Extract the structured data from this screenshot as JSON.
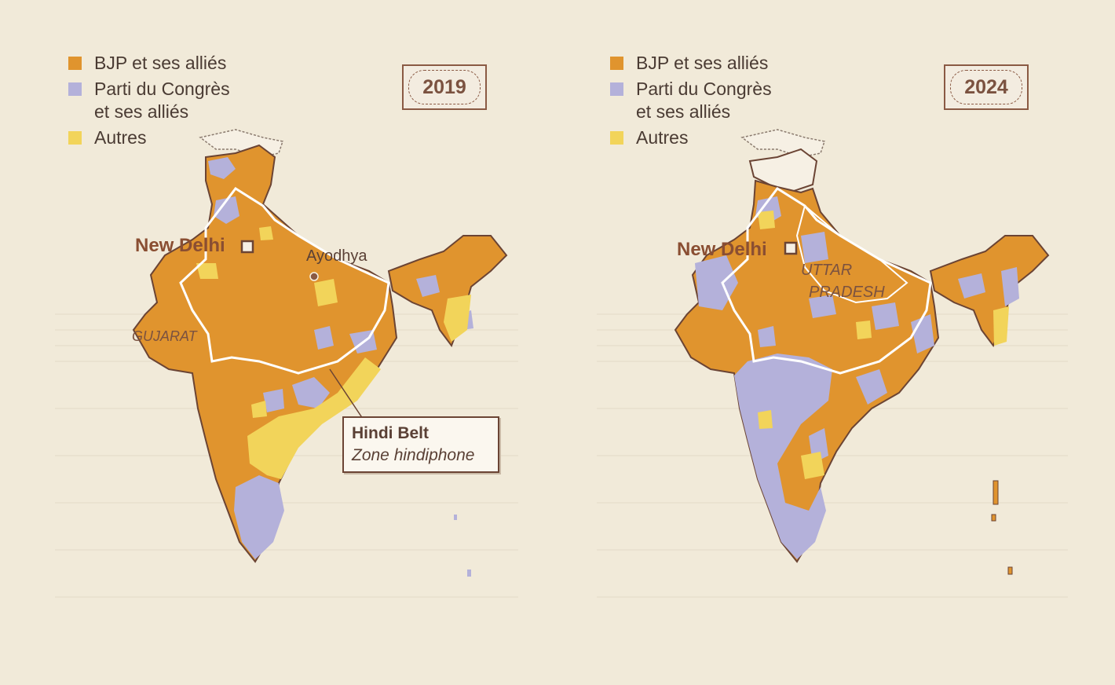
{
  "colors": {
    "bjp": "#e0942e",
    "congress": "#b4b1da",
    "others": "#f2d45a",
    "background": "#f1ead9",
    "border": "#6b4434"
  },
  "legend": [
    {
      "key": "bjp",
      "label": "BJP et ses alliés"
    },
    {
      "key": "congress",
      "label": "Parti du Congrès\net ses alliés"
    },
    {
      "key": "others",
      "label": "Autres"
    }
  ],
  "maps": [
    {
      "year": "2019",
      "city_label": "New Delhi",
      "place_labels": [
        "Ayodhya",
        "GUJARAT"
      ],
      "callout": {
        "title": "Hindi Belt",
        "subtitle": "Zone hindiphone"
      }
    },
    {
      "year": "2024",
      "city_label": "New Delhi",
      "place_labels": [
        "UTTAR",
        "PRADESH"
      ]
    }
  ]
}
